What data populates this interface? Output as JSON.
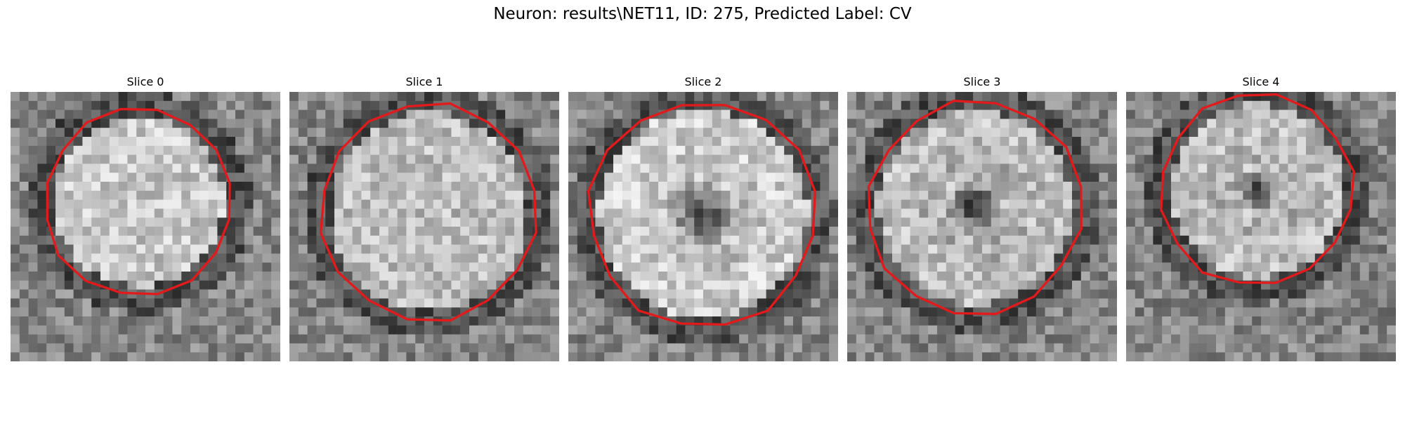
{
  "figure": {
    "title": "Neuron: results\\NET11, ID: 275, Predicted Label: CV"
  },
  "slices": [
    {
      "title": "Slice 0",
      "pattern": "filled-blob"
    },
    {
      "title": "Slice 1",
      "pattern": "filled-blob"
    },
    {
      "title": "Slice 2",
      "pattern": "ring-with-dark-center"
    },
    {
      "title": "Slice 3",
      "pattern": "ring-with-dark-center"
    },
    {
      "title": "Slice 4",
      "pattern": "ring-with-dark-center"
    }
  ],
  "colors": {
    "contour": "#e31a1c",
    "background": "#ffffff"
  }
}
